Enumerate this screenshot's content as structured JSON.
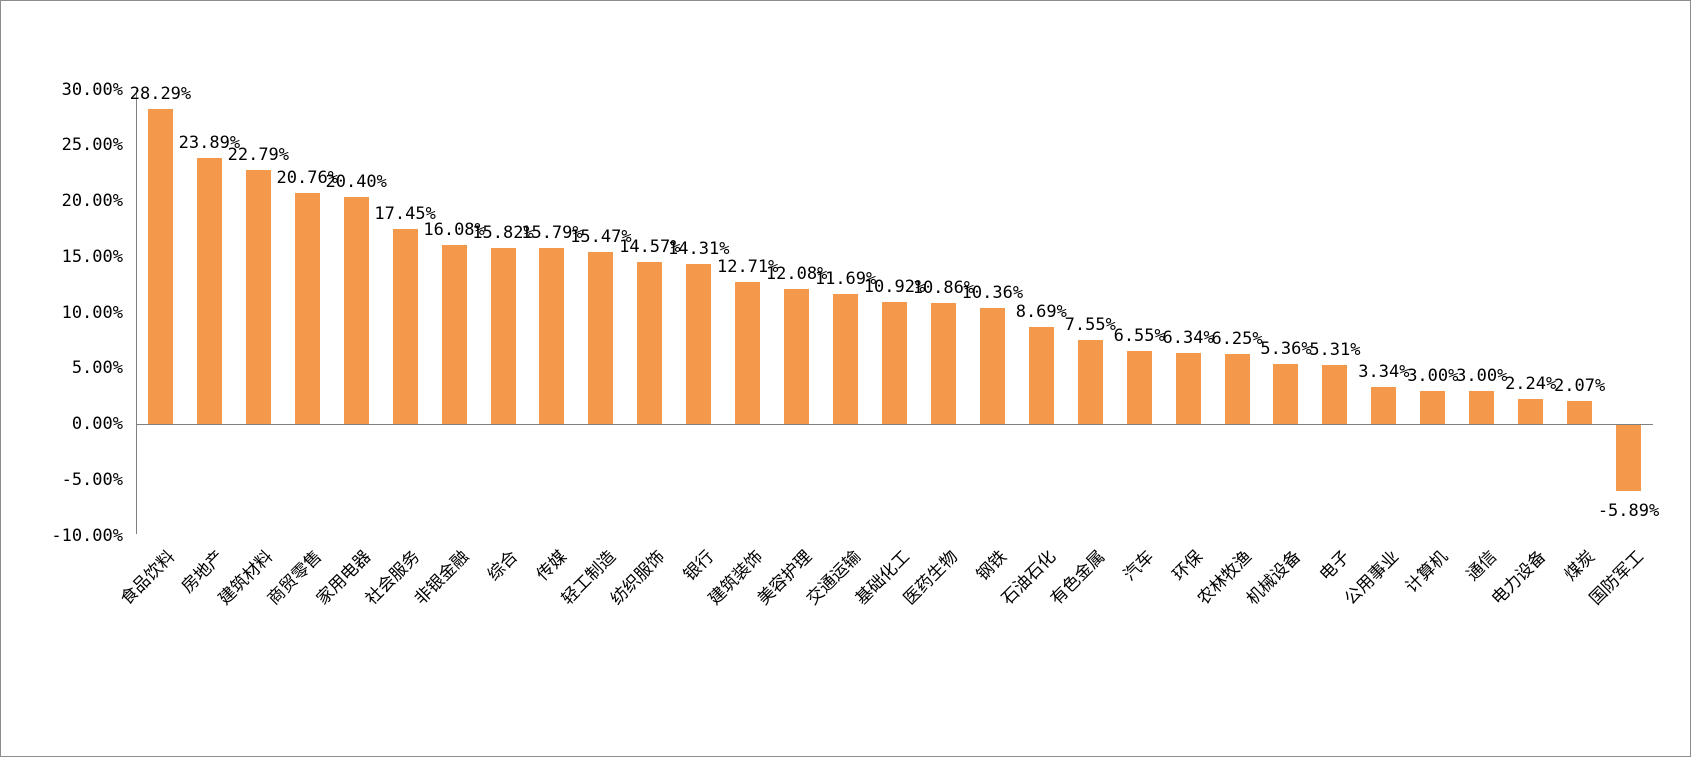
{
  "window": {
    "background_color": "#FFFFFF",
    "border_color": "#8C8C8C"
  },
  "chart_data": {
    "type": "bar",
    "title": "",
    "xlabel": "",
    "ylabel": "",
    "grid": false,
    "legend": false,
    "ylim": [
      -10,
      30
    ],
    "bar_color": "#F4984C",
    "axis_color": "#808080",
    "text_color": "#000000",
    "categories": [
      "食品饮料",
      "房地产",
      "建筑材料",
      "商贸零售",
      "家用电器",
      "社会服务",
      "非银金融",
      "综合",
      "传媒",
      "轻工制造",
      "纺织服饰",
      "银行",
      "建筑装饰",
      "美容护理",
      "交通运输",
      "基础化工",
      "医药生物",
      "钢铁",
      "石油石化",
      "有色金属",
      "汽车",
      "环保",
      "农林牧渔",
      "机械设备",
      "电子",
      "公用事业",
      "计算机",
      "通信",
      "电力设备",
      "煤炭",
      "国防军工"
    ],
    "values": [
      28.29,
      23.89,
      22.79,
      20.76,
      20.4,
      17.45,
      16.08,
      15.82,
      15.79,
      15.47,
      14.57,
      14.31,
      12.71,
      12.08,
      11.69,
      10.92,
      10.86,
      10.36,
      8.69,
      7.55,
      6.55,
      6.34,
      6.25,
      5.36,
      5.31,
      3.34,
      3.0,
      3.0,
      2.24,
      2.07,
      -5.89
    ],
    "data_labels": [
      "28.29%",
      "23.89%",
      "22.79%",
      "20.76%",
      "20.40%",
      "17.45%",
      "16.08%",
      "15.82%",
      "15.79%",
      "15.47%",
      "14.57%",
      "14.31%",
      "12.71%",
      "12.08%",
      "11.69%",
      "10.92%",
      "10.86%",
      "10.36%",
      "8.69%",
      "7.55%",
      "6.55%",
      "6.34%",
      "6.25%",
      "5.36%",
      "5.31%",
      "3.34%",
      "3.00%",
      "3.00%",
      "2.24%",
      "2.07%",
      "-5.89%"
    ],
    "y_tick_values": [
      30,
      25,
      20,
      15,
      10,
      5,
      0,
      -5,
      -10
    ],
    "y_tick_labels": [
      "30.00%",
      "25.00%",
      "20.00%",
      "15.00%",
      "10.00%",
      "5.00%",
      "0.00%",
      "-5.00%",
      "-10.00%"
    ]
  }
}
